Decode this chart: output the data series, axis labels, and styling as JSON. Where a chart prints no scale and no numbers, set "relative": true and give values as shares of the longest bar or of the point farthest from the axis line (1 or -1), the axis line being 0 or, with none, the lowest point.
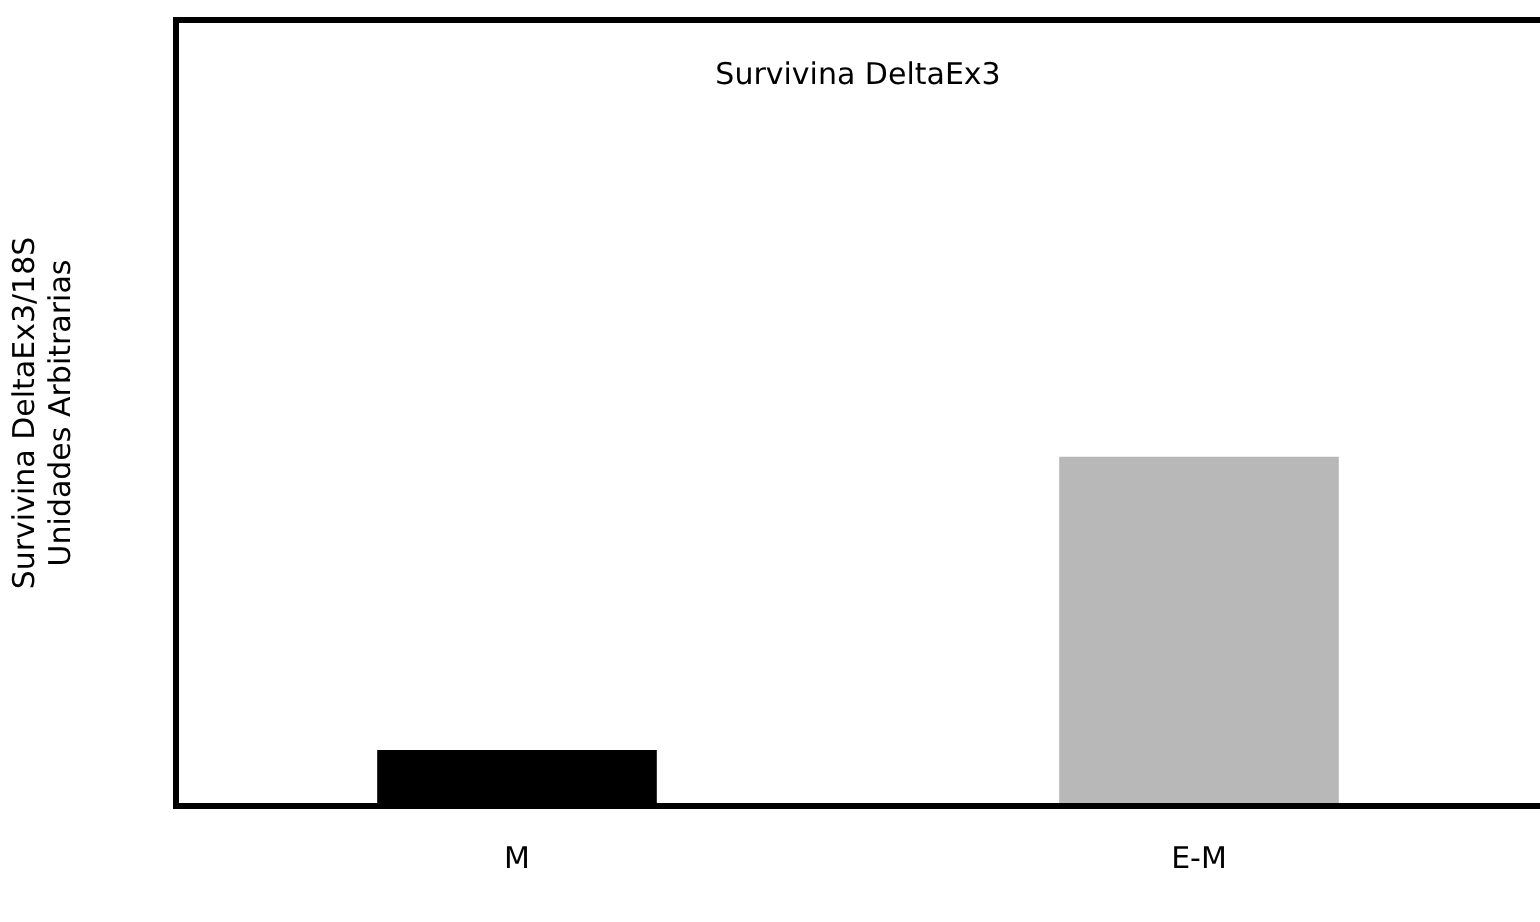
{
  "chart_data": {
    "type": "bar",
    "title": "Survivina DeltaEx3",
    "ylabel": "Survivina DeltaEx3/18S\nUnidades Arbitrarias",
    "categories": [
      "M",
      "E-M"
    ],
    "values": [
      0.16,
      1
    ],
    "colors": [
      "#000000",
      "#b8b8b8"
    ],
    "relative": true,
    "grid": false,
    "legend": false
  }
}
